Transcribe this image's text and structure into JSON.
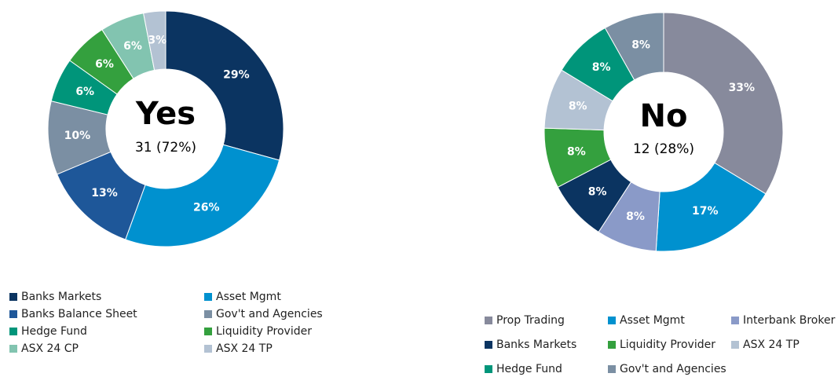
{
  "chart_data": [
    {
      "type": "donut",
      "title": "Yes",
      "subtitle": "31 (72%)",
      "categories": [
        "Banks Markets",
        "Asset Mgmt",
        "Banks Balance Sheet",
        "Gov't and Agencies",
        "Hedge Fund",
        "Liquidity Provider",
        "ASX 24 CP",
        "ASX 24 TP"
      ],
      "values": [
        29,
        26,
        13,
        10,
        6,
        6,
        6,
        3
      ],
      "value_labels": [
        "29%",
        "26%",
        "13%",
        "10%",
        "6%",
        "6%",
        "6%",
        "3%"
      ],
      "colors": [
        "#0b3461",
        "#0091cf",
        "#1e5799",
        "#7b8fa3",
        "#00957a",
        "#34a03e",
        "#82c4b0",
        "#b3c2d3"
      ]
    },
    {
      "type": "donut",
      "title": "No",
      "subtitle": "12 (28%)",
      "categories": [
        "Prop Trading",
        "Asset Mgmt",
        "Interbank Broker",
        "Banks Markets",
        "Liquidity Provider",
        "ASX 24 TP",
        "Hedge Fund",
        "Gov't and Agencies"
      ],
      "values": [
        33,
        17,
        8,
        8,
        8,
        8,
        8,
        8
      ],
      "value_labels": [
        "33%",
        "17%",
        "8%",
        "8%",
        "8%",
        "8%",
        "8%",
        "8%"
      ],
      "colors": [
        "#878a9c",
        "#0091cf",
        "#8a9ac8",
        "#0b3461",
        "#34a03e",
        "#b3c2d3",
        "#00957a",
        "#7b8fa3"
      ]
    }
  ]
}
